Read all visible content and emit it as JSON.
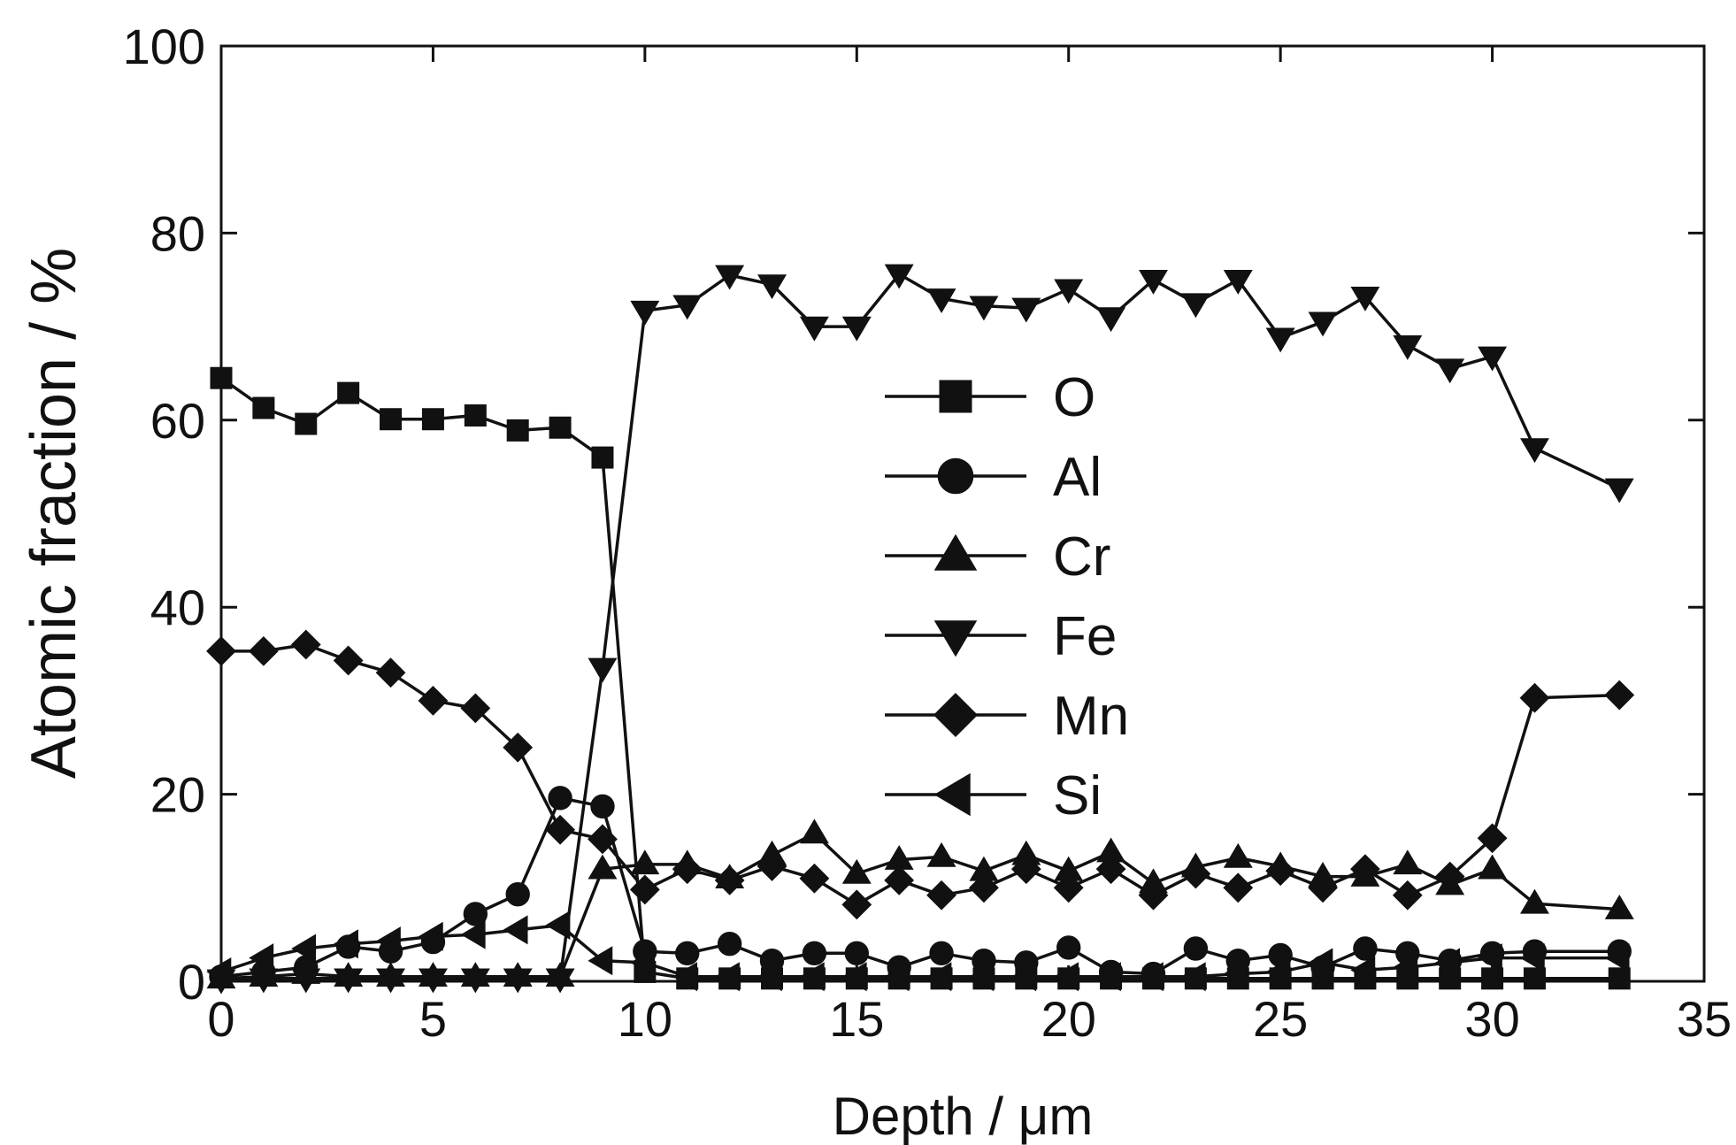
{
  "chart_data": {
    "type": "line",
    "xlabel": "Depth / μm",
    "ylabel": "Atomic fraction / %",
    "xlim": [
      0,
      35
    ],
    "ylim": [
      0,
      100
    ],
    "xticks": [
      "0",
      "5",
      "10",
      "15",
      "20",
      "25",
      "30",
      "35"
    ],
    "yticks": [
      "0",
      "20",
      "40",
      "60",
      "80",
      "100"
    ],
    "grid": false,
    "legend_position": "center",
    "color": "#111111",
    "x": [
      0,
      1,
      2,
      3,
      4,
      5,
      6,
      7,
      8,
      9,
      10,
      11,
      12,
      13,
      14,
      15,
      16,
      17,
      18,
      19,
      20,
      21,
      22,
      23,
      24,
      25,
      26,
      27,
      28,
      29,
      30,
      31,
      33
    ],
    "series": [
      {
        "name": "O",
        "marker": "square",
        "values": [
          64.5,
          61.3,
          59.6,
          62.9,
          60.1,
          60.1,
          60.5,
          58.9,
          59.2,
          56.0,
          1.0,
          0.3,
          0.3,
          0.3,
          0.3,
          0.3,
          0.3,
          0.3,
          0.3,
          0.3,
          0.3,
          0.3,
          0.3,
          0.3,
          0.3,
          0.3,
          0.3,
          0.3,
          0.3,
          0.3,
          0.3,
          0.3,
          0.3
        ]
      },
      {
        "name": "Al",
        "marker": "circle",
        "values": [
          0.5,
          1.0,
          1.5,
          3.7,
          3.2,
          4.2,
          7.2,
          9.3,
          19.6,
          18.7,
          3.2,
          3.0,
          4.0,
          2.2,
          3.0,
          3.0,
          1.5,
          3.0,
          2.2,
          2.0,
          3.6,
          1.0,
          0.8,
          3.5,
          2.2,
          2.8,
          1.5,
          3.5,
          3.0,
          2.2,
          3.0,
          3.2,
          3.2
        ]
      },
      {
        "name": "Cr",
        "marker": "triangle-up",
        "values": [
          0.3,
          0.5,
          0.8,
          0.5,
          0.5,
          0.5,
          0.5,
          0.5,
          0.5,
          12.0,
          12.5,
          12.5,
          11.0,
          13.5,
          15.8,
          11.5,
          13.0,
          13.3,
          11.8,
          13.5,
          11.8,
          13.8,
          10.5,
          12.2,
          13.2,
          12.3,
          11.2,
          11.2,
          12.5,
          10.3,
          12.0,
          8.3,
          7.7
        ]
      },
      {
        "name": "Fe",
        "marker": "triangle-down",
        "values": [
          0.2,
          0.3,
          0.3,
          0.3,
          0.3,
          0.3,
          0.3,
          0.3,
          0.3,
          33.5,
          71.7,
          72.3,
          75.5,
          74.5,
          70.0,
          70.0,
          75.6,
          73.0,
          72.2,
          72.0,
          74.0,
          71.0,
          75.0,
          72.5,
          75.0,
          68.8,
          70.5,
          73.2,
          68.0,
          65.5,
          66.8,
          57.0,
          52.7
        ]
      },
      {
        "name": "Mn",
        "marker": "diamond",
        "values": [
          35.3,
          35.3,
          36.0,
          34.3,
          33.0,
          30.0,
          29.2,
          25.0,
          16.2,
          15.2,
          9.8,
          12.0,
          10.8,
          12.3,
          11.0,
          8.2,
          10.8,
          9.2,
          10.0,
          12.0,
          10.0,
          12.0,
          9.2,
          11.5,
          10.0,
          11.8,
          10.0,
          12.0,
          9.2,
          11.2,
          15.3,
          30.3,
          30.6
        ]
      },
      {
        "name": "Si",
        "marker": "triangle-left",
        "values": [
          1.0,
          2.5,
          3.5,
          4.0,
          4.3,
          4.8,
          5.0,
          5.5,
          6.0,
          2.2,
          2.0,
          0.5,
          0.5,
          0.5,
          0.5,
          0.5,
          0.5,
          0.5,
          0.5,
          0.5,
          0.5,
          0.5,
          0.5,
          0.5,
          0.8,
          1.0,
          2.0,
          1.2,
          1.5,
          2.0,
          2.5,
          2.5,
          2.5
        ]
      }
    ]
  }
}
